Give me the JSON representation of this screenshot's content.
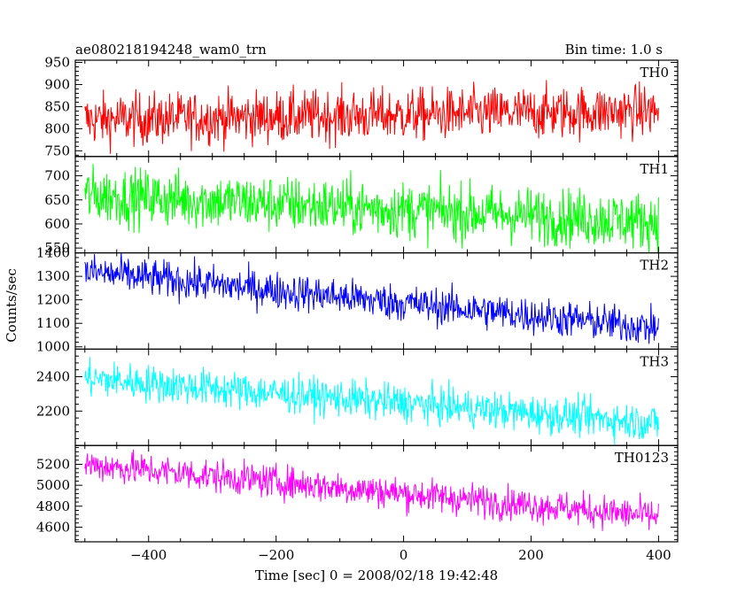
{
  "chart_data": {
    "type": "line",
    "title": "ae080218194248_wam0_trn",
    "subtitle": "Bin time: 1.0 s",
    "xlabel": "Time [sec] 0 = 2008/02/18 19:42:48",
    "ylabel": "Counts/sec",
    "xlim": [
      -515,
      430
    ],
    "x_range": [
      -500,
      400
    ],
    "xticks": [
      -400,
      -200,
      0,
      200,
      400
    ],
    "grid": false,
    "series": [
      {
        "name": "TH0",
        "color": "#ff0000",
        "ylim": [
          737,
          955
        ],
        "yticks": [
          750,
          800,
          850,
          900,
          950
        ],
        "start": 820,
        "end": 840,
        "noise": 30
      },
      {
        "name": "TH1",
        "color": "#00ff00",
        "ylim": [
          540,
          740
        ],
        "yticks": [
          550,
          600,
          650,
          700
        ],
        "start": 660,
        "end": 605,
        "noise": 30
      },
      {
        "name": "TH2",
        "color": "#0000ff",
        "ylim": [
          990,
          1400
        ],
        "yticks": [
          1000,
          1100,
          1200,
          1300,
          1400
        ],
        "start": 1320,
        "end": 1080,
        "noise": 40
      },
      {
        "name": "TH3",
        "color": "#00ffff",
        "ylim": [
          2000,
          2560
        ],
        "yticks": [
          2200,
          2400
        ],
        "start": 2390,
        "end": 2130,
        "noise": 55
      },
      {
        "name": "TH0123",
        "color": "#ff00ff",
        "ylim": [
          4460,
          5380
        ],
        "yticks": [
          4600,
          4800,
          5000,
          5200
        ],
        "start": 5200,
        "end": 4700,
        "noise": 80
      }
    ]
  }
}
